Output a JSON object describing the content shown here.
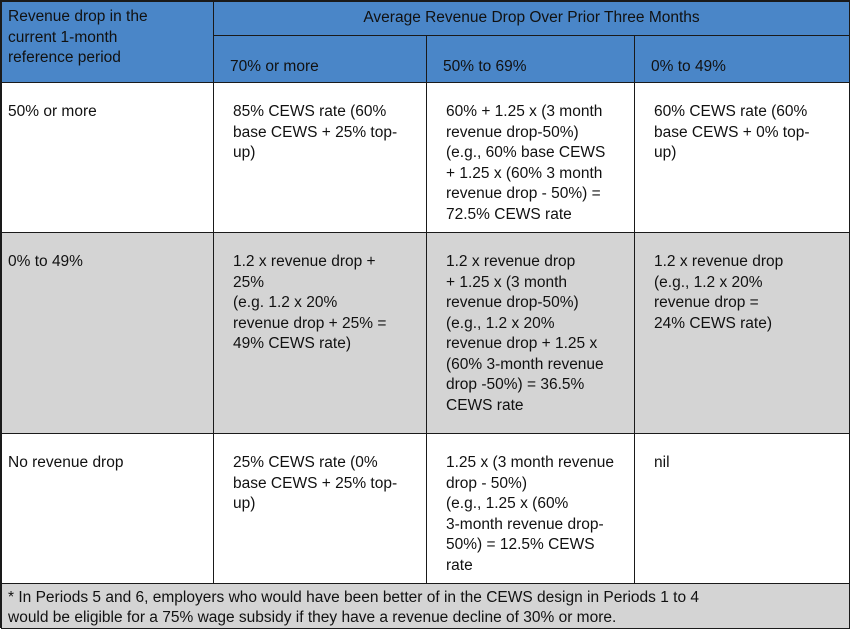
{
  "table": {
    "corner_header": "Revenue drop in the\ncurrent 1-month\nreference period",
    "group_header": "Average Revenue Drop Over Prior Three Months",
    "column_headers": [
      "70% or more",
      "50% to 69%",
      "0% to 49%"
    ],
    "rows": [
      {
        "label": "50% or more",
        "cells": [
          "85% CEWS rate (60%\nbase CEWS + 25% top-\nup)",
          "60% + 1.25 x (3 month\nrevenue drop-50%)\n(e.g., 60% base CEWS\n+ 1.25 x (60% 3 month\nrevenue drop - 50%) =\n72.5% CEWS rate",
          "60% CEWS rate (60%\nbase CEWS + 0% top-\nup)"
        ]
      },
      {
        "label": "0% to 49%",
        "cells": [
          "1.2 x revenue drop +\n25%\n(e.g. 1.2 x 20%\nrevenue drop + 25% =\n49% CEWS rate)",
          "1.2 x revenue drop\n+ 1.25 x (3 month\nrevenue drop-50%)\n(e.g., 1.2 x 20%\nrevenue drop + 1.25 x\n(60% 3-month revenue\ndrop -50%) = 36.5%\nCEWS rate",
          "1.2 x revenue drop\n(e.g., 1.2 x 20%\nrevenue drop =\n24% CEWS rate)"
        ]
      },
      {
        "label": "No revenue drop",
        "cells": [
          "25% CEWS rate (0%\nbase CEWS + 25% top-\nup)",
          "1.25 x (3 month revenue\ndrop - 50%)\n(e.g., 1.25 x (60%\n3-month revenue drop-\n50%) = 12.5% CEWS\nrate",
          "nil"
        ]
      }
    ],
    "footnote": "* In Periods 5 and 6, employers who would have been better of in the CEWS design in Periods 1 to 4\nwould be eligible for a 75% wage subsidy if they have a revenue decline of 30% or more."
  },
  "colors": {
    "header_background": "#4a86c8",
    "shaded_row_background": "#d4d4d4",
    "border": "#1a1a1a"
  }
}
